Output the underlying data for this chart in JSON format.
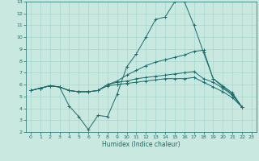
{
  "xlabel": "Humidex (Indice chaleur)",
  "background_color": "#c8e8e0",
  "grid_color": "#a8d8d0",
  "line_color": "#1a6b6b",
  "xlim": [
    -0.5,
    23.5
  ],
  "ylim": [
    2,
    13
  ],
  "xticks": [
    0,
    1,
    2,
    3,
    4,
    5,
    6,
    7,
    8,
    9,
    10,
    11,
    12,
    13,
    14,
    15,
    16,
    17,
    18,
    19,
    20,
    21,
    22,
    23
  ],
  "yticks": [
    2,
    3,
    4,
    5,
    6,
    7,
    8,
    9,
    10,
    11,
    12,
    13
  ],
  "lines": [
    {
      "x": [
        0,
        1,
        2,
        3,
        4,
        5,
        6,
        7,
        8,
        9,
        10,
        11,
        12,
        13,
        14,
        15,
        16,
        17,
        18,
        19,
        20,
        21,
        22
      ],
      "y": [
        5.5,
        5.7,
        5.9,
        5.8,
        4.2,
        3.3,
        2.2,
        3.4,
        3.3,
        5.2,
        7.5,
        8.6,
        10.0,
        11.5,
        11.7,
        13.0,
        13.0,
        11.0,
        8.7,
        6.5,
        5.8,
        5.2,
        4.1
      ]
    },
    {
      "x": [
        0,
        1,
        2,
        3,
        4,
        5,
        6,
        7,
        8,
        9,
        10,
        11,
        12,
        13,
        14,
        15,
        16,
        17,
        18,
        19,
        20,
        21,
        22
      ],
      "y": [
        5.5,
        5.7,
        5.9,
        5.8,
        5.5,
        5.4,
        5.4,
        5.5,
        6.0,
        6.3,
        6.8,
        7.2,
        7.6,
        7.9,
        8.1,
        8.3,
        8.5,
        8.8,
        8.9,
        6.5,
        5.9,
        5.3,
        4.1
      ]
    },
    {
      "x": [
        0,
        1,
        2,
        3,
        4,
        5,
        6,
        7,
        8,
        9,
        10,
        11,
        12,
        13,
        14,
        15,
        16,
        17,
        18,
        19,
        20,
        21,
        22
      ],
      "y": [
        5.5,
        5.7,
        5.9,
        5.8,
        5.5,
        5.4,
        5.4,
        5.5,
        6.0,
        6.2,
        6.3,
        6.5,
        6.6,
        6.7,
        6.8,
        6.9,
        7.0,
        7.1,
        6.5,
        6.2,
        5.7,
        5.1,
        4.1
      ]
    },
    {
      "x": [
        0,
        1,
        2,
        3,
        4,
        5,
        6,
        7,
        8,
        9,
        10,
        11,
        12,
        13,
        14,
        15,
        16,
        17,
        18,
        19,
        20,
        21,
        22
      ],
      "y": [
        5.5,
        5.7,
        5.9,
        5.8,
        5.5,
        5.4,
        5.4,
        5.5,
        5.9,
        6.0,
        6.1,
        6.2,
        6.3,
        6.4,
        6.5,
        6.5,
        6.5,
        6.6,
        6.2,
        5.8,
        5.4,
        4.9,
        4.1
      ]
    }
  ]
}
